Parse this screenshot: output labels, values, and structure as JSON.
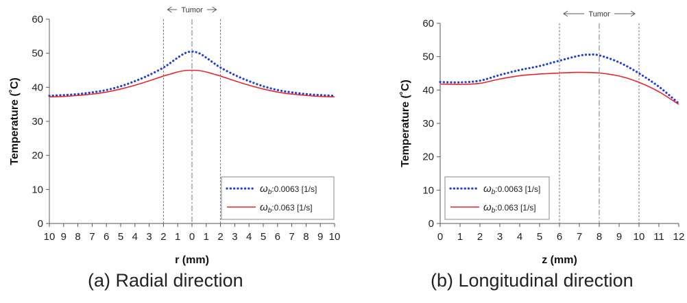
{
  "captions": {
    "a": "(a) Radial direction",
    "b": "(b) Longitudinal direction"
  },
  "colors": {
    "series_dotted": "#1f3fd6",
    "series_solid": "#e8242c",
    "axis": "#555555",
    "guide": "#777777"
  },
  "chart_data": [
    {
      "type": "line",
      "xlabel": "r (mm)",
      "ylabel": "Temperature (˚C)",
      "ylim": [
        0,
        60
      ],
      "yticks": [
        0,
        10,
        20,
        30,
        40,
        50,
        60
      ],
      "xlim": [
        -10,
        10
      ],
      "xticks": [
        -10,
        -9,
        -8,
        -7,
        -6,
        -5,
        -4,
        -3,
        -2,
        -1,
        0,
        1,
        2,
        3,
        4,
        5,
        6,
        7,
        8,
        9,
        10
      ],
      "xtick_labels": [
        "10",
        "9",
        "8",
        "7",
        "6",
        "5",
        "4",
        "3",
        "2",
        "1",
        "0",
        "1",
        "2",
        "3",
        "4",
        "5",
        "6",
        "7",
        "8",
        "9",
        "10"
      ],
      "grid": false,
      "legend_position": "bottom-right",
      "annotation": {
        "text": "Tumor",
        "from": -2,
        "to": 2
      },
      "guide_lines": [
        -2,
        0,
        2
      ],
      "series": [
        {
          "label_symbol": "ω",
          "label_sub": "b",
          "label_rest": ":0.0063 [1/s]",
          "style": "dotted",
          "x": [
            -10,
            -9,
            -8,
            -7,
            -6,
            -5,
            -4,
            -3,
            -2,
            -1.5,
            -1,
            -0.5,
            0,
            0.5,
            1,
            1.5,
            2,
            3,
            4,
            5,
            6,
            7,
            8,
            9,
            10
          ],
          "y": [
            37.5,
            37.7,
            38.0,
            38.5,
            39.2,
            40.3,
            41.8,
            43.6,
            45.8,
            47.2,
            48.7,
            50.0,
            50.5,
            50.0,
            48.7,
            47.2,
            45.8,
            43.6,
            41.8,
            40.3,
            39.2,
            38.5,
            38.0,
            37.7,
            37.5
          ]
        },
        {
          "label_symbol": "ω",
          "label_sub": "b",
          "label_rest": ":0.063 [1/s]",
          "style": "solid",
          "x": [
            -10,
            -9,
            -8,
            -7,
            -6,
            -5,
            -4,
            -3,
            -2,
            -1.5,
            -1,
            -0.5,
            0,
            0.5,
            1,
            1.5,
            2,
            3,
            4,
            5,
            6,
            7,
            8,
            9,
            10
          ],
          "y": [
            37.2,
            37.3,
            37.6,
            38.0,
            38.6,
            39.5,
            40.6,
            41.9,
            43.3,
            43.9,
            44.5,
            44.9,
            45.0,
            44.9,
            44.5,
            43.9,
            43.3,
            41.9,
            40.6,
            39.5,
            38.6,
            38.0,
            37.6,
            37.3,
            37.2
          ]
        }
      ]
    },
    {
      "type": "line",
      "xlabel": "z (mm)",
      "ylabel": "Temperature (˚C)",
      "ylim": [
        0,
        60
      ],
      "yticks": [
        0,
        10,
        20,
        30,
        40,
        50,
        60
      ],
      "xlim": [
        0,
        12
      ],
      "xticks": [
        0,
        1,
        2,
        3,
        4,
        5,
        6,
        7,
        8,
        9,
        10,
        11,
        12
      ],
      "xtick_labels": [
        "0",
        "1",
        "2",
        "3",
        "4",
        "5",
        "6",
        "7",
        "8",
        "9",
        "10",
        "11",
        "12"
      ],
      "grid": false,
      "legend_position": "bottom-left",
      "annotation": {
        "text": "Tumor",
        "from": 6,
        "to": 10
      },
      "guide_lines": [
        6,
        8,
        10
      ],
      "series": [
        {
          "label_symbol": "ω",
          "label_sub": "b",
          "label_rest": ":0.0063 [1/s]",
          "style": "dotted",
          "x": [
            0,
            1,
            2,
            3,
            4,
            5,
            6,
            7,
            7.5,
            8,
            9,
            10,
            11,
            12
          ],
          "y": [
            42.4,
            42.3,
            42.8,
            44.5,
            46.0,
            47.2,
            48.8,
            50.3,
            50.6,
            50.4,
            48.3,
            45.0,
            41.0,
            36.0
          ],
          "label_below": false
        },
        {
          "label_symbol": "ω",
          "label_sub": "b",
          "label_rest": ":0.063 [1/s]",
          "style": "solid",
          "x": [
            0,
            1,
            2,
            3,
            4,
            5,
            6,
            7,
            8,
            9,
            10,
            11,
            12
          ],
          "y": [
            41.8,
            41.7,
            42.0,
            43.3,
            44.3,
            44.8,
            45.1,
            45.3,
            45.1,
            44.2,
            42.3,
            39.5,
            35.7
          ]
        }
      ]
    }
  ]
}
